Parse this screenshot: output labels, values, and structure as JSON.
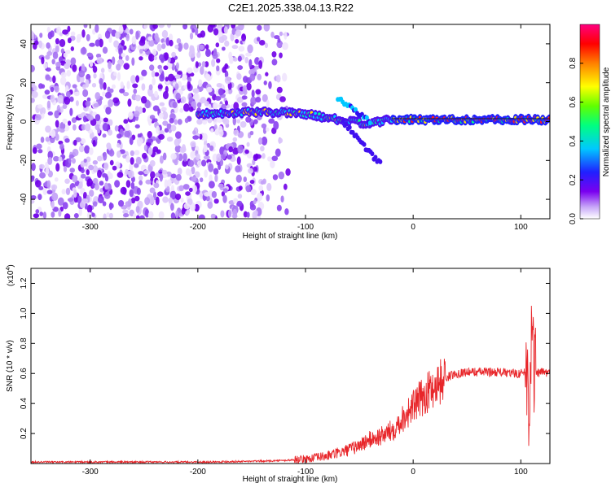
{
  "title": "C2E1.2025.338.04.13.R22",
  "chart_data": [
    {
      "type": "heatmap",
      "title": "C2E1.2025.338.04.13.R22",
      "xlabel": "Height of straight line (km)",
      "ylabel": "Frequency (Hz)",
      "xlim": [
        -355,
        127
      ],
      "ylim": [
        -50,
        50
      ],
      "xticks": [
        -300,
        -200,
        -100,
        0,
        100
      ],
      "yticks": [
        -40,
        -20,
        0,
        20,
        40
      ],
      "colorbar": {
        "label": "Normalized spectral amplitude",
        "range": [
          0,
          1
        ],
        "ticks": [
          "0.0",
          "0.2",
          "0.4",
          "0.6",
          "0.8"
        ],
        "colors": [
          "#ffffff",
          "#c8a8f8",
          "#7a00f0",
          "#2020ff",
          "#00c8ff",
          "#00ff80",
          "#60ff00",
          "#ffff00",
          "#ff8000",
          "#ff0000",
          "#ff0080"
        ]
      },
      "noise_region_x": [
        -355,
        -115
      ],
      "main_line": {
        "x": [
          -200,
          -140,
          -100,
          -80,
          -60,
          -40,
          -20,
          0,
          50,
          100,
          127
        ],
        "y": [
          4,
          5,
          4,
          2,
          0,
          -1,
          1,
          1,
          1,
          1,
          1
        ]
      }
    },
    {
      "type": "line",
      "xlabel": "Height of straight line (km)",
      "ylabel": "SNR (10 * v/v)",
      "multiplier": "(x10",
      "multiplier_exp": "4",
      "multiplier_close": ")",
      "xlim": [
        -355,
        127
      ],
      "ylim": [
        0,
        1.3
      ],
      "xticks": [
        -300,
        -200,
        -100,
        0,
        100
      ],
      "yticks": [
        0.2,
        0.4,
        0.6,
        0.8,
        1.0,
        1.2
      ],
      "ytick_labels": [
        "0.2",
        "0.4",
        "0.6",
        "0.8",
        "1.0",
        "1.2"
      ],
      "series_color": "#e8262a",
      "series": [
        {
          "x": [
            -355,
            -300,
            -250,
            -200,
            -150,
            -120,
            -100,
            -90,
            -80,
            -70,
            -60,
            -50,
            -40,
            -30,
            -20,
            -10,
            0,
            10,
            20,
            30,
            40,
            50,
            60,
            70,
            80,
            90,
            100,
            105,
            108,
            110,
            112,
            115,
            120,
            127
          ],
          "y": [
            0.01,
            0.01,
            0.01,
            0.01,
            0.015,
            0.02,
            0.03,
            0.04,
            0.05,
            0.07,
            0.09,
            0.12,
            0.16,
            0.18,
            0.22,
            0.3,
            0.38,
            0.45,
            0.52,
            0.57,
            0.6,
            0.61,
            0.61,
            0.61,
            0.61,
            0.6,
            0.6,
            0.62,
            0.4,
            1.05,
            0.6,
            0.6,
            0.61,
            0.6
          ]
        }
      ]
    }
  ]
}
